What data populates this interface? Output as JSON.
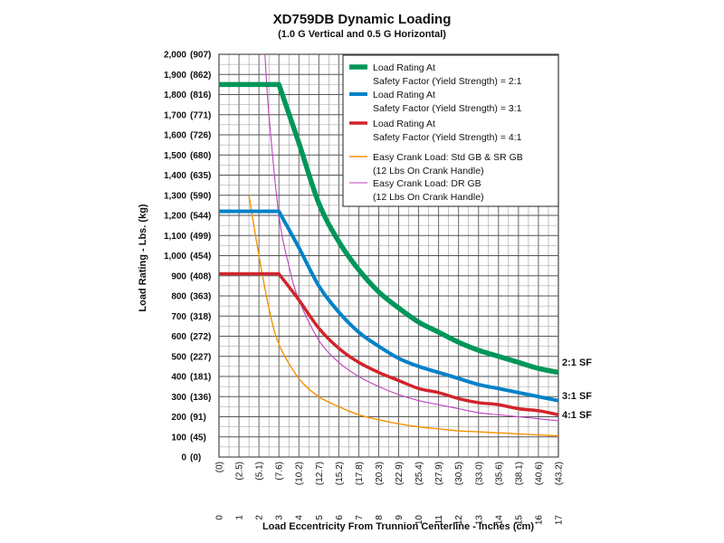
{
  "chart_data": {
    "type": "line",
    "title": "XD759DB Dynamic Loading",
    "subtitle": "(1.0 G Vertical and 0.5 G Horizontal)",
    "xlabel": "Load Eccentricity From Trunnion Centerline - Inches (cm)",
    "ylabel": "Load Rating - Lbs. (kg)",
    "xlim": [
      0,
      17
    ],
    "ylim": [
      0,
      2000
    ],
    "grid": true,
    "legend_position": "top-right",
    "x_ticks": [
      {
        "inch": "0",
        "cm": "(0)"
      },
      {
        "inch": "1",
        "cm": "(2.5)"
      },
      {
        "inch": "2",
        "cm": "(5.1)"
      },
      {
        "inch": "3",
        "cm": "(7.6)"
      },
      {
        "inch": "4",
        "cm": "(10.2)"
      },
      {
        "inch": "5",
        "cm": "(12.7)"
      },
      {
        "inch": "6",
        "cm": "(15.2)"
      },
      {
        "inch": "7",
        "cm": "(17.8)"
      },
      {
        "inch": "8",
        "cm": "(20.3)"
      },
      {
        "inch": "9",
        "cm": "(22.9)"
      },
      {
        "inch": "10",
        "cm": "(25.4)"
      },
      {
        "inch": "11",
        "cm": "(27.9)"
      },
      {
        "inch": "12",
        "cm": "(30.5)"
      },
      {
        "inch": "13",
        "cm": "(33.0)"
      },
      {
        "inch": "14",
        "cm": "(35.6)"
      },
      {
        "inch": "15",
        "cm": "(38.1)"
      },
      {
        "inch": "16",
        "cm": "(40.6)"
      },
      {
        "inch": "17",
        "cm": "(43.2)"
      }
    ],
    "y_ticks": [
      {
        "lbs": "0",
        "kg": "(0)"
      },
      {
        "lbs": "100",
        "kg": "(45)"
      },
      {
        "lbs": "200",
        "kg": "(91)"
      },
      {
        "lbs": "300",
        "kg": "(136)"
      },
      {
        "lbs": "400",
        "kg": "(181)"
      },
      {
        "lbs": "500",
        "kg": "(227)"
      },
      {
        "lbs": "600",
        "kg": "(272)"
      },
      {
        "lbs": "700",
        "kg": "(318)"
      },
      {
        "lbs": "800",
        "kg": "(363)"
      },
      {
        "lbs": "900",
        "kg": "(408)"
      },
      {
        "lbs": "1,000",
        "kg": "(454)"
      },
      {
        "lbs": "1,100",
        "kg": "(499)"
      },
      {
        "lbs": "1,200",
        "kg": "(544)"
      },
      {
        "lbs": "1,300",
        "kg": "(590)"
      },
      {
        "lbs": "1,400",
        "kg": "(635)"
      },
      {
        "lbs": "1,500",
        "kg": "(680)"
      },
      {
        "lbs": "1,600",
        "kg": "(726)"
      },
      {
        "lbs": "1,700",
        "kg": "(771)"
      },
      {
        "lbs": "1,800",
        "kg": "(816)"
      },
      {
        "lbs": "1,900",
        "kg": "(862)"
      },
      {
        "lbs": "2,000",
        "kg": "(907)"
      }
    ],
    "series": [
      {
        "name": "Load Rating At Safety Factor (Yield Strength) = 2:1",
        "legend_lines": [
          "Load Rating At",
          "Safety Factor (Yield Strength) = 2:1"
        ],
        "color": "#00965a",
        "end_label": "2:1 SF",
        "x": [
          0,
          1,
          2,
          3,
          4,
          5,
          6,
          7,
          8,
          9,
          10,
          11,
          12,
          13,
          14,
          15,
          16,
          17
        ],
        "y": [
          1850,
          1850,
          1850,
          1850,
          1560,
          1260,
          1070,
          930,
          820,
          740,
          670,
          620,
          570,
          530,
          500,
          470,
          440,
          420
        ]
      },
      {
        "name": "Load Rating At Safety Factor (Yield Strength) = 3:1",
        "legend_lines": [
          "Load Rating At",
          "Safety Factor (Yield Strength) = 3:1"
        ],
        "color": "#0082c8",
        "end_label": "3:1 SF",
        "x": [
          0,
          1,
          2,
          3,
          4,
          5,
          6,
          7,
          8,
          9,
          10,
          11,
          12,
          13,
          14,
          15,
          16,
          17
        ],
        "y": [
          1220,
          1220,
          1220,
          1220,
          1040,
          850,
          720,
          620,
          550,
          490,
          450,
          420,
          390,
          360,
          340,
          320,
          300,
          280
        ]
      },
      {
        "name": "Load Rating At Safety Factor (Yield Strength) = 4:1",
        "legend_lines": [
          "Load Rating At",
          "Safety Factor (Yield Strength) = 4:1"
        ],
        "color": "#d2232a",
        "end_label": "4:1 SF",
        "x": [
          0,
          1,
          2,
          3,
          4,
          5,
          6,
          7,
          8,
          9,
          10,
          11,
          12,
          13,
          14,
          15,
          16,
          17
        ],
        "y": [
          910,
          910,
          910,
          910,
          780,
          640,
          540,
          470,
          420,
          380,
          340,
          320,
          290,
          270,
          260,
          240,
          230,
          210
        ]
      },
      {
        "name": "Easy Crank Load: Std GB & SR GB (12 Lbs On Crank Handle)",
        "legend_lines": [
          "Easy Crank Load: Std GB & SR GB",
          "(12 Lbs On Crank Handle)"
        ],
        "color": "#f39200",
        "end_label": "",
        "x": [
          1.5,
          2,
          2.5,
          3,
          4,
          5,
          6,
          7,
          8,
          9,
          10,
          11,
          12,
          13,
          14,
          15,
          16,
          17
        ],
        "y": [
          1300,
          1000,
          740,
          560,
          390,
          300,
          250,
          210,
          185,
          165,
          150,
          140,
          130,
          125,
          120,
          115,
          110,
          105
        ]
      },
      {
        "name": "Easy Crank Load: DR GB (12 Lbs On Crank Handle)",
        "legend_lines": [
          "Easy Crank Load: DR GB",
          "(12 Lbs On Crank Handle)"
        ],
        "color": "#c040c0",
        "end_label": "",
        "x": [
          2.3,
          2.5,
          3,
          3.5,
          4,
          5,
          6,
          7,
          8,
          9,
          10,
          11,
          12,
          13,
          14,
          15,
          16,
          17
        ],
        "y": [
          2000,
          1700,
          1200,
          950,
          780,
          580,
          470,
          400,
          350,
          310,
          280,
          260,
          240,
          220,
          210,
          200,
          190,
          180
        ]
      }
    ]
  }
}
